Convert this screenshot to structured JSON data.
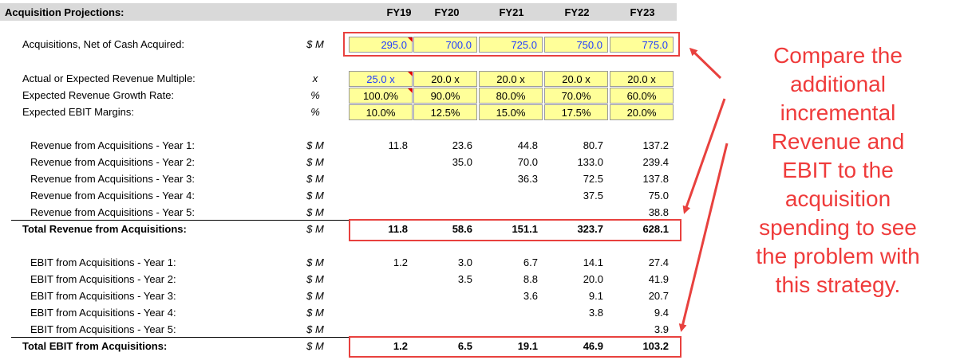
{
  "header": {
    "title": "Acquisition Projections:",
    "years": [
      "FY19",
      "FY20",
      "FY21",
      "FY22",
      "FY23"
    ]
  },
  "rows": {
    "acquisitions": {
      "label": "Acquisitions, Net of Cash Acquired:",
      "unit": "$ M",
      "values": [
        "295.0",
        "700.0",
        "725.0",
        "750.0",
        "775.0"
      ]
    },
    "multiple": {
      "label": "Actual or Expected Revenue Multiple:",
      "unit": "x",
      "values": [
        "25.0 x",
        "20.0 x",
        "20.0 x",
        "20.0 x",
        "20.0 x"
      ]
    },
    "growth": {
      "label": "Expected Revenue Growth Rate:",
      "unit": "%",
      "values": [
        "100.0%",
        "90.0%",
        "80.0%",
        "70.0%",
        "60.0%"
      ]
    },
    "ebit_margin": {
      "label": "Expected EBIT Margins:",
      "unit": "%",
      "values": [
        "10.0%",
        "12.5%",
        "15.0%",
        "17.5%",
        "20.0%"
      ]
    },
    "revenue": [
      {
        "label": "Revenue from Acquisitions - Year 1:",
        "unit": "$ M",
        "values": [
          "11.8",
          "23.6",
          "44.8",
          "80.7",
          "137.2"
        ]
      },
      {
        "label": "Revenue from Acquisitions - Year 2:",
        "unit": "$ M",
        "values": [
          "",
          "35.0",
          "70.0",
          "133.0",
          "239.4"
        ]
      },
      {
        "label": "Revenue from Acquisitions - Year 3:",
        "unit": "$ M",
        "values": [
          "",
          "",
          "36.3",
          "72.5",
          "137.8"
        ]
      },
      {
        "label": "Revenue from Acquisitions - Year 4:",
        "unit": "$ M",
        "values": [
          "",
          "",
          "",
          "37.5",
          "75.0"
        ]
      },
      {
        "label": "Revenue from Acquisitions - Year 5:",
        "unit": "$ M",
        "values": [
          "",
          "",
          "",
          "",
          "38.8"
        ]
      }
    ],
    "total_revenue": {
      "label": "Total Revenue from Acquisitions:",
      "unit": "$ M",
      "values": [
        "11.8",
        "58.6",
        "151.1",
        "323.7",
        "628.1"
      ]
    },
    "ebit": [
      {
        "label": "EBIT from Acquisitions - Year 1:",
        "unit": "$ M",
        "values": [
          "1.2",
          "3.0",
          "6.7",
          "14.1",
          "27.4"
        ]
      },
      {
        "label": "EBIT from Acquisitions - Year 2:",
        "unit": "$ M",
        "values": [
          "",
          "3.5",
          "8.8",
          "20.0",
          "41.9"
        ]
      },
      {
        "label": "EBIT from Acquisitions - Year 3:",
        "unit": "$ M",
        "values": [
          "",
          "",
          "3.6",
          "9.1",
          "20.7"
        ]
      },
      {
        "label": "EBIT from Acquisitions - Year 4:",
        "unit": "$ M",
        "values": [
          "",
          "",
          "",
          "3.8",
          "9.4"
        ]
      },
      {
        "label": "EBIT from Acquisitions - Year 5:",
        "unit": "$ M",
        "values": [
          "",
          "",
          "",
          "",
          "3.9"
        ]
      }
    ],
    "total_ebit": {
      "label": "Total EBIT from Acquisitions:",
      "unit": "$ M",
      "values": [
        "1.2",
        "6.5",
        "19.1",
        "46.9",
        "103.2"
      ]
    }
  },
  "annotation": {
    "lines": [
      "Compare the",
      "additional",
      "incremental",
      "Revenue and",
      "EBIT to the",
      "acquisition",
      "spending to see",
      "the problem with",
      "this strategy."
    ],
    "color": "#ef3b3b"
  },
  "colors": {
    "input_fill": "#ffff99",
    "input_text": "#1f3cff",
    "highlight_box": "#e8413e",
    "header_fill": "#d9d9d9"
  }
}
